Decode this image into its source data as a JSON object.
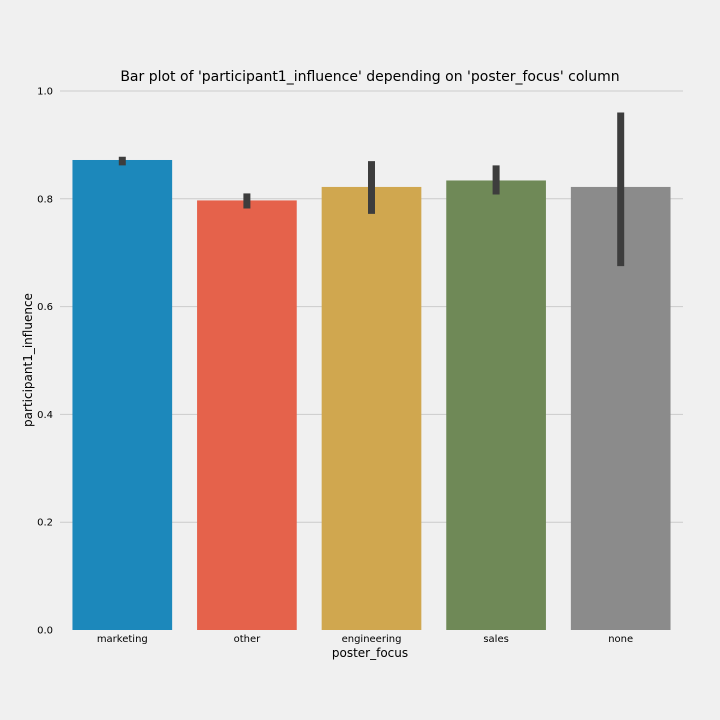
{
  "chart_data": {
    "type": "bar",
    "title": "Bar plot of 'participant1_influence' depending on 'poster_focus' column",
    "xlabel": "poster_focus",
    "ylabel": "participant1_influence",
    "ylim": [
      0.0,
      1.0
    ],
    "yticks": [
      "0.0",
      "0.2",
      "0.4",
      "0.6",
      "0.8",
      "1.0"
    ],
    "ytick_values": [
      0.0,
      0.2,
      0.4,
      0.6,
      0.8,
      1.0
    ],
    "grid": true,
    "categories": [
      "marketing",
      "other",
      "engineering",
      "sales",
      "none"
    ],
    "values": [
      0.872,
      0.797,
      0.822,
      0.834,
      0.822
    ],
    "error_low": [
      0.862,
      0.782,
      0.772,
      0.808,
      0.675
    ],
    "error_high": [
      0.878,
      0.81,
      0.87,
      0.862,
      0.96
    ],
    "colors": [
      "#1c88bb",
      "#e5624b",
      "#d0a74f",
      "#6f8957",
      "#8b8b8b"
    ]
  }
}
